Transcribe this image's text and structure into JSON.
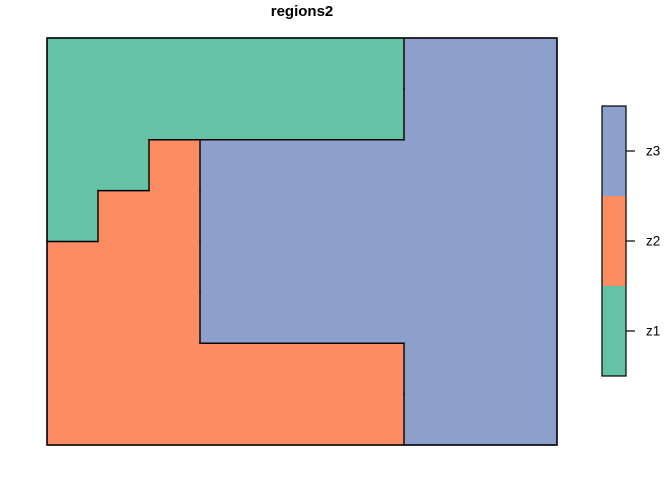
{
  "title": "regions2",
  "chart_data": {
    "type": "heatmap",
    "title": "regions2",
    "grid_cols": 10,
    "grid_rows": 8,
    "cells": [
      [
        "z1",
        "z1",
        "z1",
        "z1",
        "z1",
        "z1",
        "z1",
        "z3",
        "z3",
        "z3"
      ],
      [
        "z1",
        "z1",
        "z1",
        "z1",
        "z1",
        "z1",
        "z1",
        "z3",
        "z3",
        "z3"
      ],
      [
        "z1",
        "z1",
        "z2",
        "z3",
        "z3",
        "z3",
        "z3",
        "z3",
        "z3",
        "z3"
      ],
      [
        "z1",
        "z2",
        "z2",
        "z3",
        "z3",
        "z3",
        "z3",
        "z3",
        "z3",
        "z3"
      ],
      [
        "z2",
        "z2",
        "z2",
        "z3",
        "z3",
        "z3",
        "z3",
        "z3",
        "z3",
        "z3"
      ],
      [
        "z2",
        "z2",
        "z2",
        "z3",
        "z3",
        "z3",
        "z3",
        "z3",
        "z3",
        "z3"
      ],
      [
        "z2",
        "z2",
        "z2",
        "z2",
        "z2",
        "z2",
        "z2",
        "z3",
        "z3",
        "z3"
      ],
      [
        "z2",
        "z2",
        "z2",
        "z2",
        "z2",
        "z2",
        "z2",
        "z3",
        "z3",
        "z3"
      ]
    ],
    "colors": {
      "z1": "#66C2A5",
      "z2": "#FC8D62",
      "z3": "#8DA0CB"
    },
    "border_color": "#000000",
    "legend": {
      "position": "right",
      "entries": [
        {
          "label": "z3",
          "color": "#8DA0CB"
        },
        {
          "label": "z2",
          "color": "#FC8D62"
        },
        {
          "label": "z1",
          "color": "#66C2A5"
        }
      ]
    }
  }
}
